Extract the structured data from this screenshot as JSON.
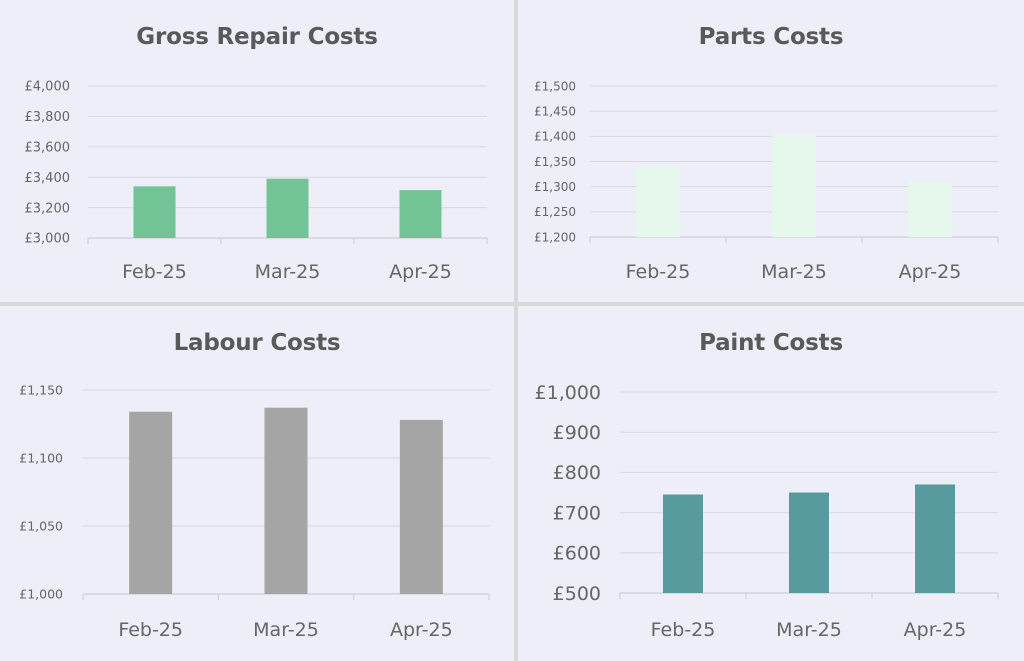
{
  "chart_data": [
    {
      "type": "bar",
      "title": "Gross Repair Costs",
      "categories": [
        "Feb-25",
        "Mar-25",
        "Apr-25"
      ],
      "values": [
        3340,
        3390,
        3315
      ],
      "ylim": [
        3000,
        4000
      ],
      "yticks": [
        "£3,000",
        "£3,200",
        "£3,400",
        "£3,600",
        "£3,800",
        "£4,000"
      ],
      "color": "#72c497",
      "grid": true,
      "xlabel": "",
      "ylabel": ""
    },
    {
      "type": "bar",
      "title": "Parts Costs",
      "categories": [
        "Feb-25",
        "Mar-25",
        "Apr-25"
      ],
      "values": [
        1340,
        1402,
        1310
      ],
      "ylim": [
        1200,
        1500
      ],
      "yticks": [
        "£1,200",
        "£1,250",
        "£1,300",
        "£1,350",
        "£1,400",
        "£1,450",
        "£1,500"
      ],
      "color": "#e6f8ec",
      "grid": true,
      "xlabel": "",
      "ylabel": ""
    },
    {
      "type": "bar",
      "title": "Labour Costs",
      "categories": [
        "Feb-25",
        "Mar-25",
        "Apr-25"
      ],
      "values": [
        1134,
        1137,
        1128
      ],
      "ylim": [
        1000,
        1150
      ],
      "yticks": [
        "£1,000",
        "£1,050",
        "£1,100",
        "£1,150"
      ],
      "color": "#a5a5a5",
      "grid": true,
      "xlabel": "",
      "ylabel": ""
    },
    {
      "type": "bar",
      "title": "Paint Costs",
      "categories": [
        "Feb-25",
        "Mar-25",
        "Apr-25"
      ],
      "values": [
        745,
        750,
        770
      ],
      "ylim": [
        500,
        1000
      ],
      "yticks": [
        "£500",
        "£600",
        "£700",
        "£800",
        "£900",
        "£1,000"
      ],
      "color": "#589b9e",
      "grid": true,
      "xlabel": "",
      "ylabel": ""
    }
  ]
}
